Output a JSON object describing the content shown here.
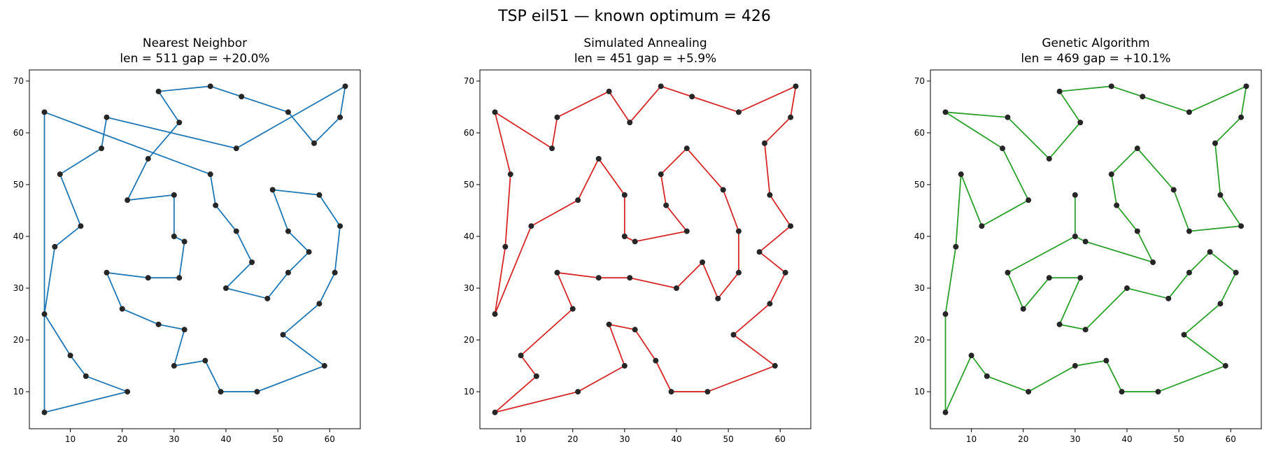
{
  "figure": {
    "suptitle": "TSP eil51 — known optimum = 426"
  },
  "chart_data": [
    {
      "type": "line",
      "title": "Nearest Neighbor",
      "subtitle": "len = 511   gap = +20.0%",
      "color": "#1f77b4",
      "xlim": [
        2.1,
        65.9
      ],
      "ylim": [
        2.85,
        72.15
      ],
      "xticks": [
        10,
        20,
        30,
        40,
        50,
        60
      ],
      "yticks": [
        10,
        20,
        30,
        40,
        50,
        60,
        70
      ],
      "grid": false,
      "tour": [
        [
          5,
          64
        ],
        [
          37,
          52
        ],
        [
          38,
          46
        ],
        [
          42,
          41
        ],
        [
          45,
          35
        ],
        [
          40,
          30
        ],
        [
          48,
          28
        ],
        [
          52,
          33
        ],
        [
          56,
          37
        ],
        [
          52,
          41
        ],
        [
          49,
          49
        ],
        [
          58,
          48
        ],
        [
          62,
          42
        ],
        [
          61,
          33
        ],
        [
          58,
          27
        ],
        [
          51,
          21
        ],
        [
          59,
          15
        ],
        [
          46,
          10
        ],
        [
          39,
          10
        ],
        [
          36,
          16
        ],
        [
          30,
          15
        ],
        [
          32,
          22
        ],
        [
          27,
          23
        ],
        [
          20,
          26
        ],
        [
          17,
          33
        ],
        [
          25,
          32
        ],
        [
          31,
          32
        ],
        [
          32,
          39
        ],
        [
          30,
          40
        ],
        [
          30,
          48
        ],
        [
          21,
          47
        ],
        [
          25,
          55
        ],
        [
          31,
          62
        ],
        [
          27,
          68
        ],
        [
          37,
          69
        ],
        [
          43,
          67
        ],
        [
          52,
          64
        ],
        [
          57,
          58
        ],
        [
          62,
          63
        ],
        [
          63,
          69
        ],
        [
          42,
          57
        ],
        [
          17,
          63
        ],
        [
          16,
          57
        ],
        [
          8,
          52
        ],
        [
          12,
          42
        ],
        [
          7,
          38
        ],
        [
          5,
          25
        ],
        [
          10,
          17
        ],
        [
          13,
          13
        ],
        [
          21,
          10
        ],
        [
          5,
          6
        ],
        [
          5,
          64
        ]
      ]
    },
    {
      "type": "line",
      "title": "Simulated Annealing",
      "subtitle": "len = 451   gap = +5.9%",
      "color": "#d62728",
      "xlim": [
        2.1,
        65.9
      ],
      "ylim": [
        2.85,
        72.15
      ],
      "xticks": [
        10,
        20,
        30,
        40,
        50,
        60
      ],
      "yticks": [
        10,
        20,
        30,
        40,
        50,
        60,
        70
      ],
      "grid": false,
      "tour": [
        [
          5,
          64
        ],
        [
          16,
          57
        ],
        [
          17,
          63
        ],
        [
          27,
          68
        ],
        [
          31,
          62
        ],
        [
          37,
          69
        ],
        [
          43,
          67
        ],
        [
          52,
          64
        ],
        [
          63,
          69
        ],
        [
          62,
          63
        ],
        [
          57,
          58
        ],
        [
          58,
          48
        ],
        [
          62,
          42
        ],
        [
          56,
          37
        ],
        [
          61,
          33
        ],
        [
          58,
          27
        ],
        [
          51,
          21
        ],
        [
          59,
          15
        ],
        [
          46,
          10
        ],
        [
          39,
          10
        ],
        [
          36,
          16
        ],
        [
          32,
          22
        ],
        [
          27,
          23
        ],
        [
          30,
          15
        ],
        [
          21,
          10
        ],
        [
          5,
          6
        ],
        [
          13,
          13
        ],
        [
          10,
          17
        ],
        [
          20,
          26
        ],
        [
          17,
          33
        ],
        [
          25,
          32
        ],
        [
          31,
          32
        ],
        [
          40,
          30
        ],
        [
          45,
          35
        ],
        [
          48,
          28
        ],
        [
          52,
          33
        ],
        [
          52,
          41
        ],
        [
          49,
          49
        ],
        [
          42,
          57
        ],
        [
          37,
          52
        ],
        [
          38,
          46
        ],
        [
          42,
          41
        ],
        [
          32,
          39
        ],
        [
          30,
          40
        ],
        [
          30,
          48
        ],
        [
          25,
          55
        ],
        [
          21,
          47
        ],
        [
          12,
          42
        ],
        [
          5,
          25
        ],
        [
          7,
          38
        ],
        [
          8,
          52
        ],
        [
          5,
          64
        ]
      ]
    },
    {
      "type": "line",
      "title": "Genetic Algorithm",
      "subtitle": "len = 469   gap = +10.1%",
      "color": "#2ca02c",
      "xlim": [
        2.1,
        65.9
      ],
      "ylim": [
        2.85,
        72.15
      ],
      "xticks": [
        10,
        20,
        30,
        40,
        50,
        60
      ],
      "yticks": [
        10,
        20,
        30,
        40,
        50,
        60,
        70
      ],
      "grid": false,
      "tour": [
        [
          5,
          64
        ],
        [
          17,
          63
        ],
        [
          25,
          55
        ],
        [
          31,
          62
        ],
        [
          27,
          68
        ],
        [
          37,
          69
        ],
        [
          43,
          67
        ],
        [
          52,
          64
        ],
        [
          63,
          69
        ],
        [
          62,
          63
        ],
        [
          57,
          58
        ],
        [
          58,
          48
        ],
        [
          62,
          42
        ],
        [
          52,
          41
        ],
        [
          49,
          49
        ],
        [
          42,
          57
        ],
        [
          37,
          52
        ],
        [
          38,
          46
        ],
        [
          42,
          41
        ],
        [
          45,
          35
        ],
        [
          32,
          39
        ],
        [
          30,
          40
        ],
        [
          30,
          48
        ],
        [
          30,
          40
        ],
        [
          17,
          33
        ],
        [
          20,
          26
        ],
        [
          25,
          32
        ],
        [
          31,
          32
        ],
        [
          27,
          23
        ],
        [
          32,
          22
        ],
        [
          40,
          30
        ],
        [
          48,
          28
        ],
        [
          52,
          33
        ],
        [
          56,
          37
        ],
        [
          61,
          33
        ],
        [
          58,
          27
        ],
        [
          51,
          21
        ],
        [
          59,
          15
        ],
        [
          46,
          10
        ],
        [
          39,
          10
        ],
        [
          36,
          16
        ],
        [
          30,
          15
        ],
        [
          21,
          10
        ],
        [
          13,
          13
        ],
        [
          10,
          17
        ],
        [
          5,
          6
        ],
        [
          5,
          25
        ],
        [
          7,
          38
        ],
        [
          8,
          52
        ],
        [
          12,
          42
        ],
        [
          21,
          47
        ],
        [
          16,
          57
        ],
        [
          5,
          64
        ]
      ]
    }
  ]
}
